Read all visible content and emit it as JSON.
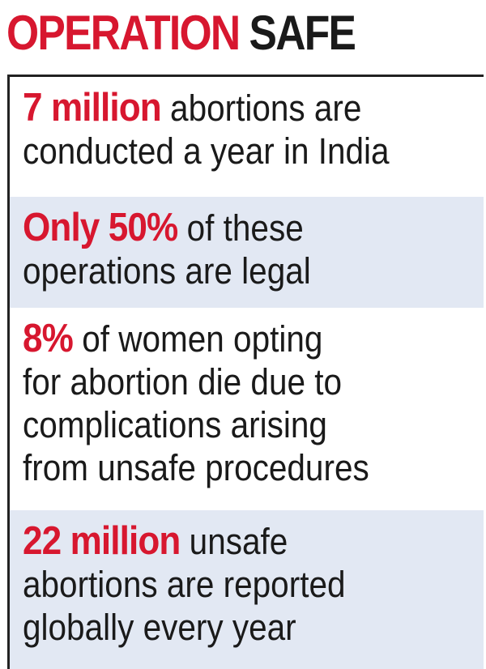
{
  "title": {
    "word1": "OPERATION",
    "word2": "SAFE"
  },
  "colors": {
    "accent": "#d7172f",
    "text": "#1a1a1a",
    "shade": "#e2e8f3",
    "border": "#222222"
  },
  "facts": [
    {
      "highlight": "7 million",
      "line1_rest": "abortions are",
      "lines": [
        "conducted a year in India"
      ]
    },
    {
      "highlight": "Only 50%",
      "line1_rest": "of these",
      "lines": [
        "operations are legal"
      ]
    },
    {
      "highlight": "8%",
      "line1_rest": "of women opting",
      "lines": [
        "for abortion die due to",
        "complications arising",
        "from unsafe procedures"
      ]
    },
    {
      "highlight": "22 million",
      "line1_rest": "unsafe",
      "lines": [
        "abortions are reported",
        "globally every year"
      ]
    }
  ]
}
